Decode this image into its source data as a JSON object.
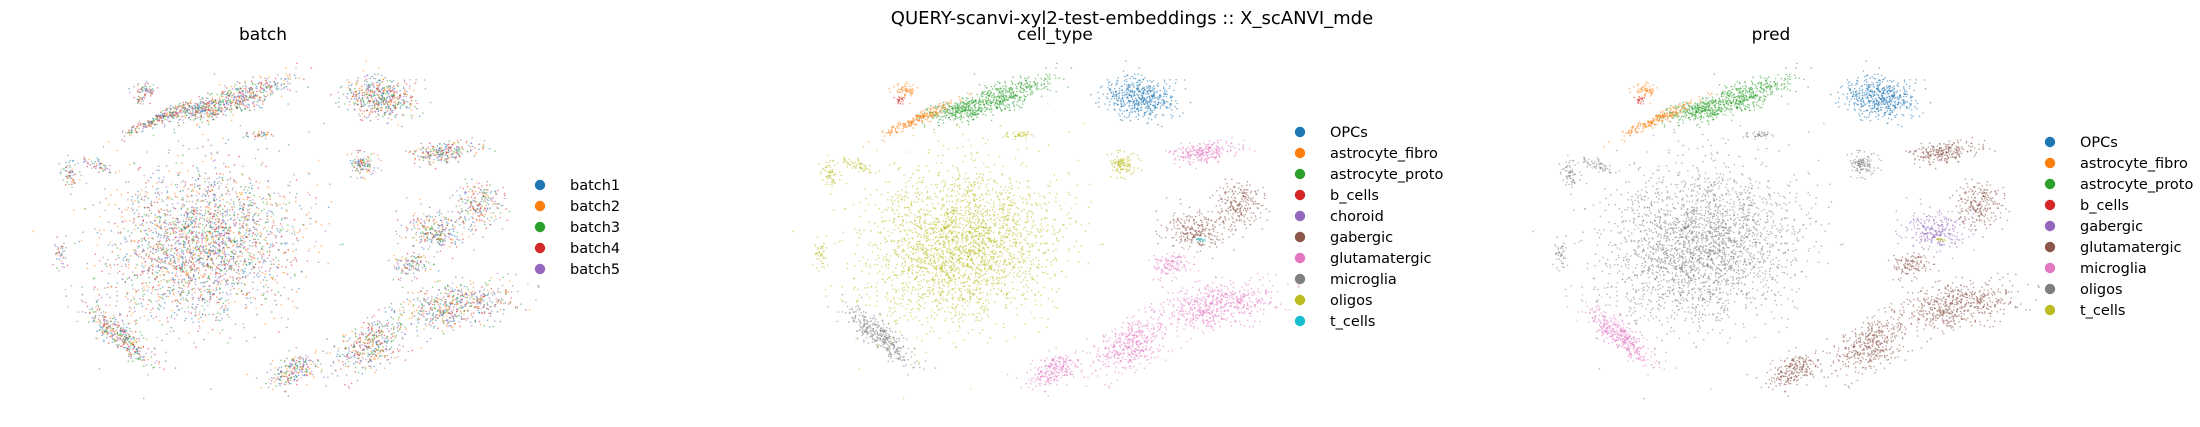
{
  "figure": {
    "suptitle": "QUERY-scanvi-xyl2-test-embeddings :: X_scANVI_mde"
  },
  "chart_data": [
    {
      "type": "scatter",
      "title": "batch",
      "legend_placement": "right",
      "grid": false,
      "axes_visible": false,
      "categories": [
        {
          "name": "batch1",
          "color": "#1f77b4"
        },
        {
          "name": "batch2",
          "color": "#ff7f0e"
        },
        {
          "name": "batch3",
          "color": "#2ca02c"
        },
        {
          "name": "batch4",
          "color": "#d62728"
        },
        {
          "name": "batch5",
          "color": "#9467bd"
        }
      ]
    },
    {
      "type": "scatter",
      "title": "cell_type",
      "legend_placement": "right",
      "grid": false,
      "axes_visible": false,
      "categories": [
        {
          "name": "OPCs",
          "color": "#1f77b4"
        },
        {
          "name": "astrocyte_fibro",
          "color": "#ff7f0e"
        },
        {
          "name": "astrocyte_proto",
          "color": "#2ca02c"
        },
        {
          "name": "b_cells",
          "color": "#d62728"
        },
        {
          "name": "choroid",
          "color": "#9467bd"
        },
        {
          "name": "gabergic",
          "color": "#8c564b"
        },
        {
          "name": "glutamatergic",
          "color": "#e377c2"
        },
        {
          "name": "microglia",
          "color": "#7f7f7f"
        },
        {
          "name": "oligos",
          "color": "#bcbd22"
        },
        {
          "name": "t_cells",
          "color": "#17becf"
        }
      ]
    },
    {
      "type": "scatter",
      "title": "pred",
      "legend_placement": "right",
      "grid": false,
      "axes_visible": false,
      "categories": [
        {
          "name": "OPCs",
          "color": "#1f77b4"
        },
        {
          "name": "astrocyte_fibro",
          "color": "#ff7f0e"
        },
        {
          "name": "astrocyte_proto",
          "color": "#2ca02c"
        },
        {
          "name": "b_cells",
          "color": "#d62728"
        },
        {
          "name": "gabergic",
          "color": "#9467bd"
        },
        {
          "name": "glutamatergic",
          "color": "#8c564b"
        },
        {
          "name": "microglia",
          "color": "#e377c2"
        },
        {
          "name": "oligos",
          "color": "#7f7f7f"
        },
        {
          "name": "t_cells",
          "color": "#bcbd22"
        }
      ]
    }
  ]
}
